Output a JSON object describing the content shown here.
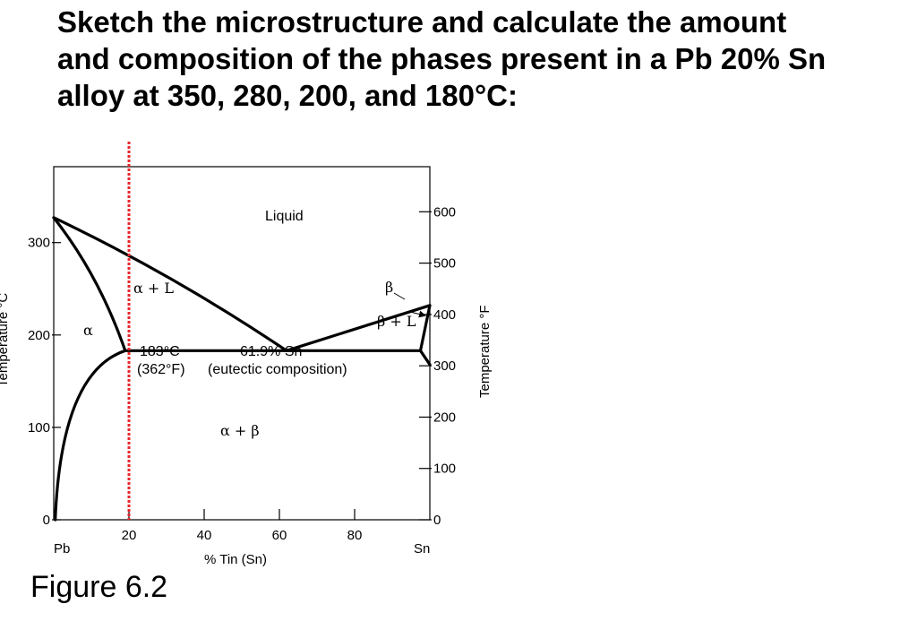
{
  "problem": {
    "lines": [
      "Sketch the microstructure and calculate the amount",
      "and composition of the phases present in a Pb 20% Sn",
      "alloy at 350, 280, 200, and 180°C:"
    ]
  },
  "figure_caption": "Figure 6.2",
  "diagram": {
    "left_axis": {
      "title": "Temperature °C",
      "ticks": [
        {
          "value": 0,
          "label": "0"
        },
        {
          "value": 100,
          "label": "100"
        },
        {
          "value": 200,
          "label": "200"
        },
        {
          "value": 300,
          "label": "300"
        }
      ],
      "range": [
        0,
        350
      ]
    },
    "right_axis": {
      "title": "Temperature °F",
      "ticks": [
        {
          "value": 0,
          "label": "0"
        },
        {
          "value": 100,
          "label": "100"
        },
        {
          "value": 200,
          "label": "200"
        },
        {
          "value": 300,
          "label": "300"
        },
        {
          "value": 400,
          "label": "400"
        },
        {
          "value": 500,
          "label": "500"
        },
        {
          "value": 600,
          "label": "600"
        }
      ]
    },
    "x_axis": {
      "title": "% Tin (Sn)",
      "range": [
        0,
        100
      ],
      "ticks": [
        {
          "value": 20,
          "label": "20"
        },
        {
          "value": 40,
          "label": "40"
        },
        {
          "value": 60,
          "label": "60"
        },
        {
          "value": 80,
          "label": "80"
        }
      ],
      "end_labels": {
        "left": "Pb",
        "right": "Sn"
      }
    },
    "phase_labels": {
      "liquid": "Liquid",
      "alpha_liquid": "α + L",
      "alpha": "α",
      "beta": "β",
      "beta_liquid": "β + L",
      "alpha_beta": "α + β"
    },
    "eutectic": {
      "temp_c": "183°C",
      "temp_f": "(362°F)",
      "composition": "61.9% Sn",
      "composition_note": "(eutectic composition)",
      "temperature": 183,
      "sn_percent": 61.9
    },
    "key_points": {
      "pb_melting": {
        "sn": 0,
        "temp": 327
      },
      "sn_melting": {
        "sn": 100,
        "temp": 232
      },
      "alpha_max": {
        "sn": 19,
        "temp": 183
      },
      "beta_min": {
        "sn": 97.5,
        "temp": 183
      }
    },
    "marker_line": {
      "sn": 20,
      "color": "#e8262a"
    },
    "line_color": "#000000"
  }
}
